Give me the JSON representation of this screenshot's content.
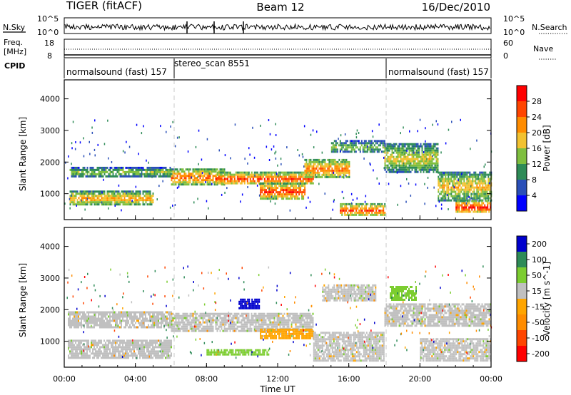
{
  "header": {
    "radar": "TIGER (fitACF)",
    "beam": "Beam 12",
    "date": "16/Dec/2010"
  },
  "strip_panels": {
    "nsky": {
      "label": "N.Sky",
      "ticks": [
        "10^5",
        "10^0"
      ]
    },
    "nsearch": {
      "label": "N.Search",
      "ticks": [
        "10^5",
        "10^0"
      ]
    },
    "freq": {
      "label_line1": "Freq.",
      "label_line2": "[MHz]",
      "ticks": [
        "18",
        "8"
      ]
    },
    "nave": {
      "label": "Nave",
      "ticks": [
        "60",
        "0"
      ]
    },
    "cpid": {
      "label": "CPID",
      "segments": [
        {
          "name": "normalsound (fast) 157",
          "start_hour": 0,
          "end_hour": 6
        },
        {
          "name": "stereo_scan 8551",
          "start_hour": 6,
          "end_hour": 18
        },
        {
          "name": "normalsound (fast) 157",
          "start_hour": 18,
          "end_hour": 24
        }
      ]
    }
  },
  "chart_data": [
    {
      "type": "heatmap",
      "title": "",
      "xlabel": "",
      "ylabel": "Slant Range [km]",
      "xlim": [
        0,
        24
      ],
      "ylim": [
        180,
        4600
      ],
      "yticks": [
        "1000",
        "2000",
        "3000",
        "4000"
      ],
      "colorbar": {
        "label": "Power [dB]",
        "ticks": [
          "28",
          "24",
          "20",
          "16",
          "12",
          "8",
          "4"
        ],
        "colors": [
          "#0000ff",
          "#2a4fb8",
          "#2e8b57",
          "#7fbf3f",
          "#f2c230",
          "#ff8c00",
          "#ff4500",
          "#ff0000"
        ]
      },
      "bands": [
        {
          "start": 0.3,
          "end": 6,
          "lo": 1550,
          "hi": 1850,
          "value": 14
        },
        {
          "start": 0.3,
          "end": 5,
          "lo": 650,
          "hi": 1100,
          "value": 21
        },
        {
          "start": 6,
          "end": 9,
          "lo": 1300,
          "hi": 1800,
          "value": 24
        },
        {
          "start": 8.5,
          "end": 14,
          "lo": 1300,
          "hi": 1700,
          "value": 26
        },
        {
          "start": 11,
          "end": 13.5,
          "lo": 850,
          "hi": 1350,
          "value": 27
        },
        {
          "start": 13.5,
          "end": 16,
          "lo": 1500,
          "hi": 2100,
          "value": 23
        },
        {
          "start": 15,
          "end": 18,
          "lo": 2300,
          "hi": 2700,
          "value": 13
        },
        {
          "start": 15.5,
          "end": 18,
          "lo": 300,
          "hi": 700,
          "value": 25
        },
        {
          "start": 18,
          "end": 21,
          "lo": 1700,
          "hi": 2600,
          "value": 17
        },
        {
          "start": 21,
          "end": 24,
          "lo": 800,
          "hi": 1700,
          "value": 19
        },
        {
          "start": 22,
          "end": 24,
          "lo": 400,
          "hi": 800,
          "value": 28
        }
      ]
    },
    {
      "type": "heatmap",
      "title": "",
      "xlabel": "Time UT",
      "ylabel": "Slant Range [km]",
      "xlim": [
        0,
        24
      ],
      "ylim": [
        180,
        4600
      ],
      "xticks": [
        "00:00",
        "04:00",
        "08:00",
        "12:00",
        "16:00",
        "20:00",
        "00:00"
      ],
      "yticks": [
        "1000",
        "2000",
        "3000",
        "4000"
      ],
      "colorbar": {
        "label": "Velocity [m s^-1]",
        "ticks": [
          "200",
          "100",
          "50",
          "15",
          "-15",
          "-50",
          "-100",
          "-200"
        ],
        "colors": [
          "#0000cd",
          "#2e8b57",
          "#7ccd30",
          "#c0c0c0",
          "#ffa500",
          "#ff8c00",
          "#ff4500",
          "#ff0000"
        ]
      },
      "bands": [
        {
          "start": 0.2,
          "end": 6,
          "lo": 1450,
          "hi": 1950,
          "value": 0
        },
        {
          "start": 0.2,
          "end": 6,
          "lo": 500,
          "hi": 1050,
          "value": 0
        },
        {
          "start": 6,
          "end": 14,
          "lo": 1350,
          "hi": 1900,
          "value": 0
        },
        {
          "start": 9.8,
          "end": 11,
          "lo": 2050,
          "hi": 2350,
          "value": 200
        },
        {
          "start": 8,
          "end": 11.5,
          "lo": 600,
          "hi": 750,
          "value": 50
        },
        {
          "start": 11,
          "end": 14,
          "lo": 1100,
          "hi": 1400,
          "value": -40
        },
        {
          "start": 14,
          "end": 18,
          "lo": 400,
          "hi": 1300,
          "value": 0
        },
        {
          "start": 14.5,
          "end": 17.5,
          "lo": 2300,
          "hi": 2800,
          "value": 0
        },
        {
          "start": 18,
          "end": 24,
          "lo": 1500,
          "hi": 2200,
          "value": 0
        },
        {
          "start": 18.3,
          "end": 19.8,
          "lo": 2300,
          "hi": 2750,
          "value": 60
        },
        {
          "start": 20,
          "end": 24,
          "lo": 400,
          "hi": 1100,
          "value": 0
        }
      ]
    }
  ]
}
